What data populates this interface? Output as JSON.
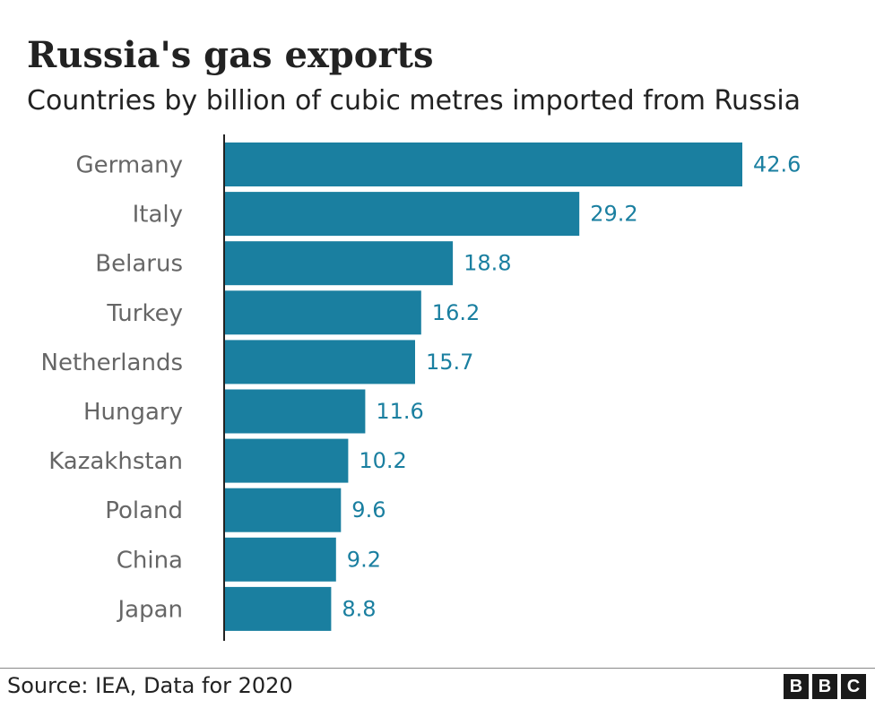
{
  "colors": {
    "bar": "#1a7fa0",
    "value_text": "#1a7fa0",
    "axis": "#222222"
  },
  "footer": {
    "source": "Source: IEA, Data for 2020",
    "logo_letters": [
      "B",
      "B",
      "C"
    ]
  },
  "chart_data": {
    "type": "bar",
    "orientation": "horizontal",
    "title": "Russia's gas exports",
    "subtitle": "Countries by billion of cubic metres imported from Russia",
    "categories": [
      "Germany",
      "Italy",
      "Belarus",
      "Turkey",
      "Netherlands",
      "Hungary",
      "Kazakhstan",
      "Poland",
      "China",
      "Japan"
    ],
    "values": [
      42.6,
      29.2,
      18.8,
      16.2,
      15.7,
      11.6,
      10.2,
      9.6,
      9.2,
      8.8
    ],
    "value_labels": [
      "42.6",
      "29.2",
      "18.8",
      "16.2",
      "15.7",
      "11.6",
      "10.2",
      "9.6",
      "9.2",
      "8.8"
    ],
    "xlim": [
      0,
      42.6
    ],
    "grid": false,
    "legend": "none"
  }
}
